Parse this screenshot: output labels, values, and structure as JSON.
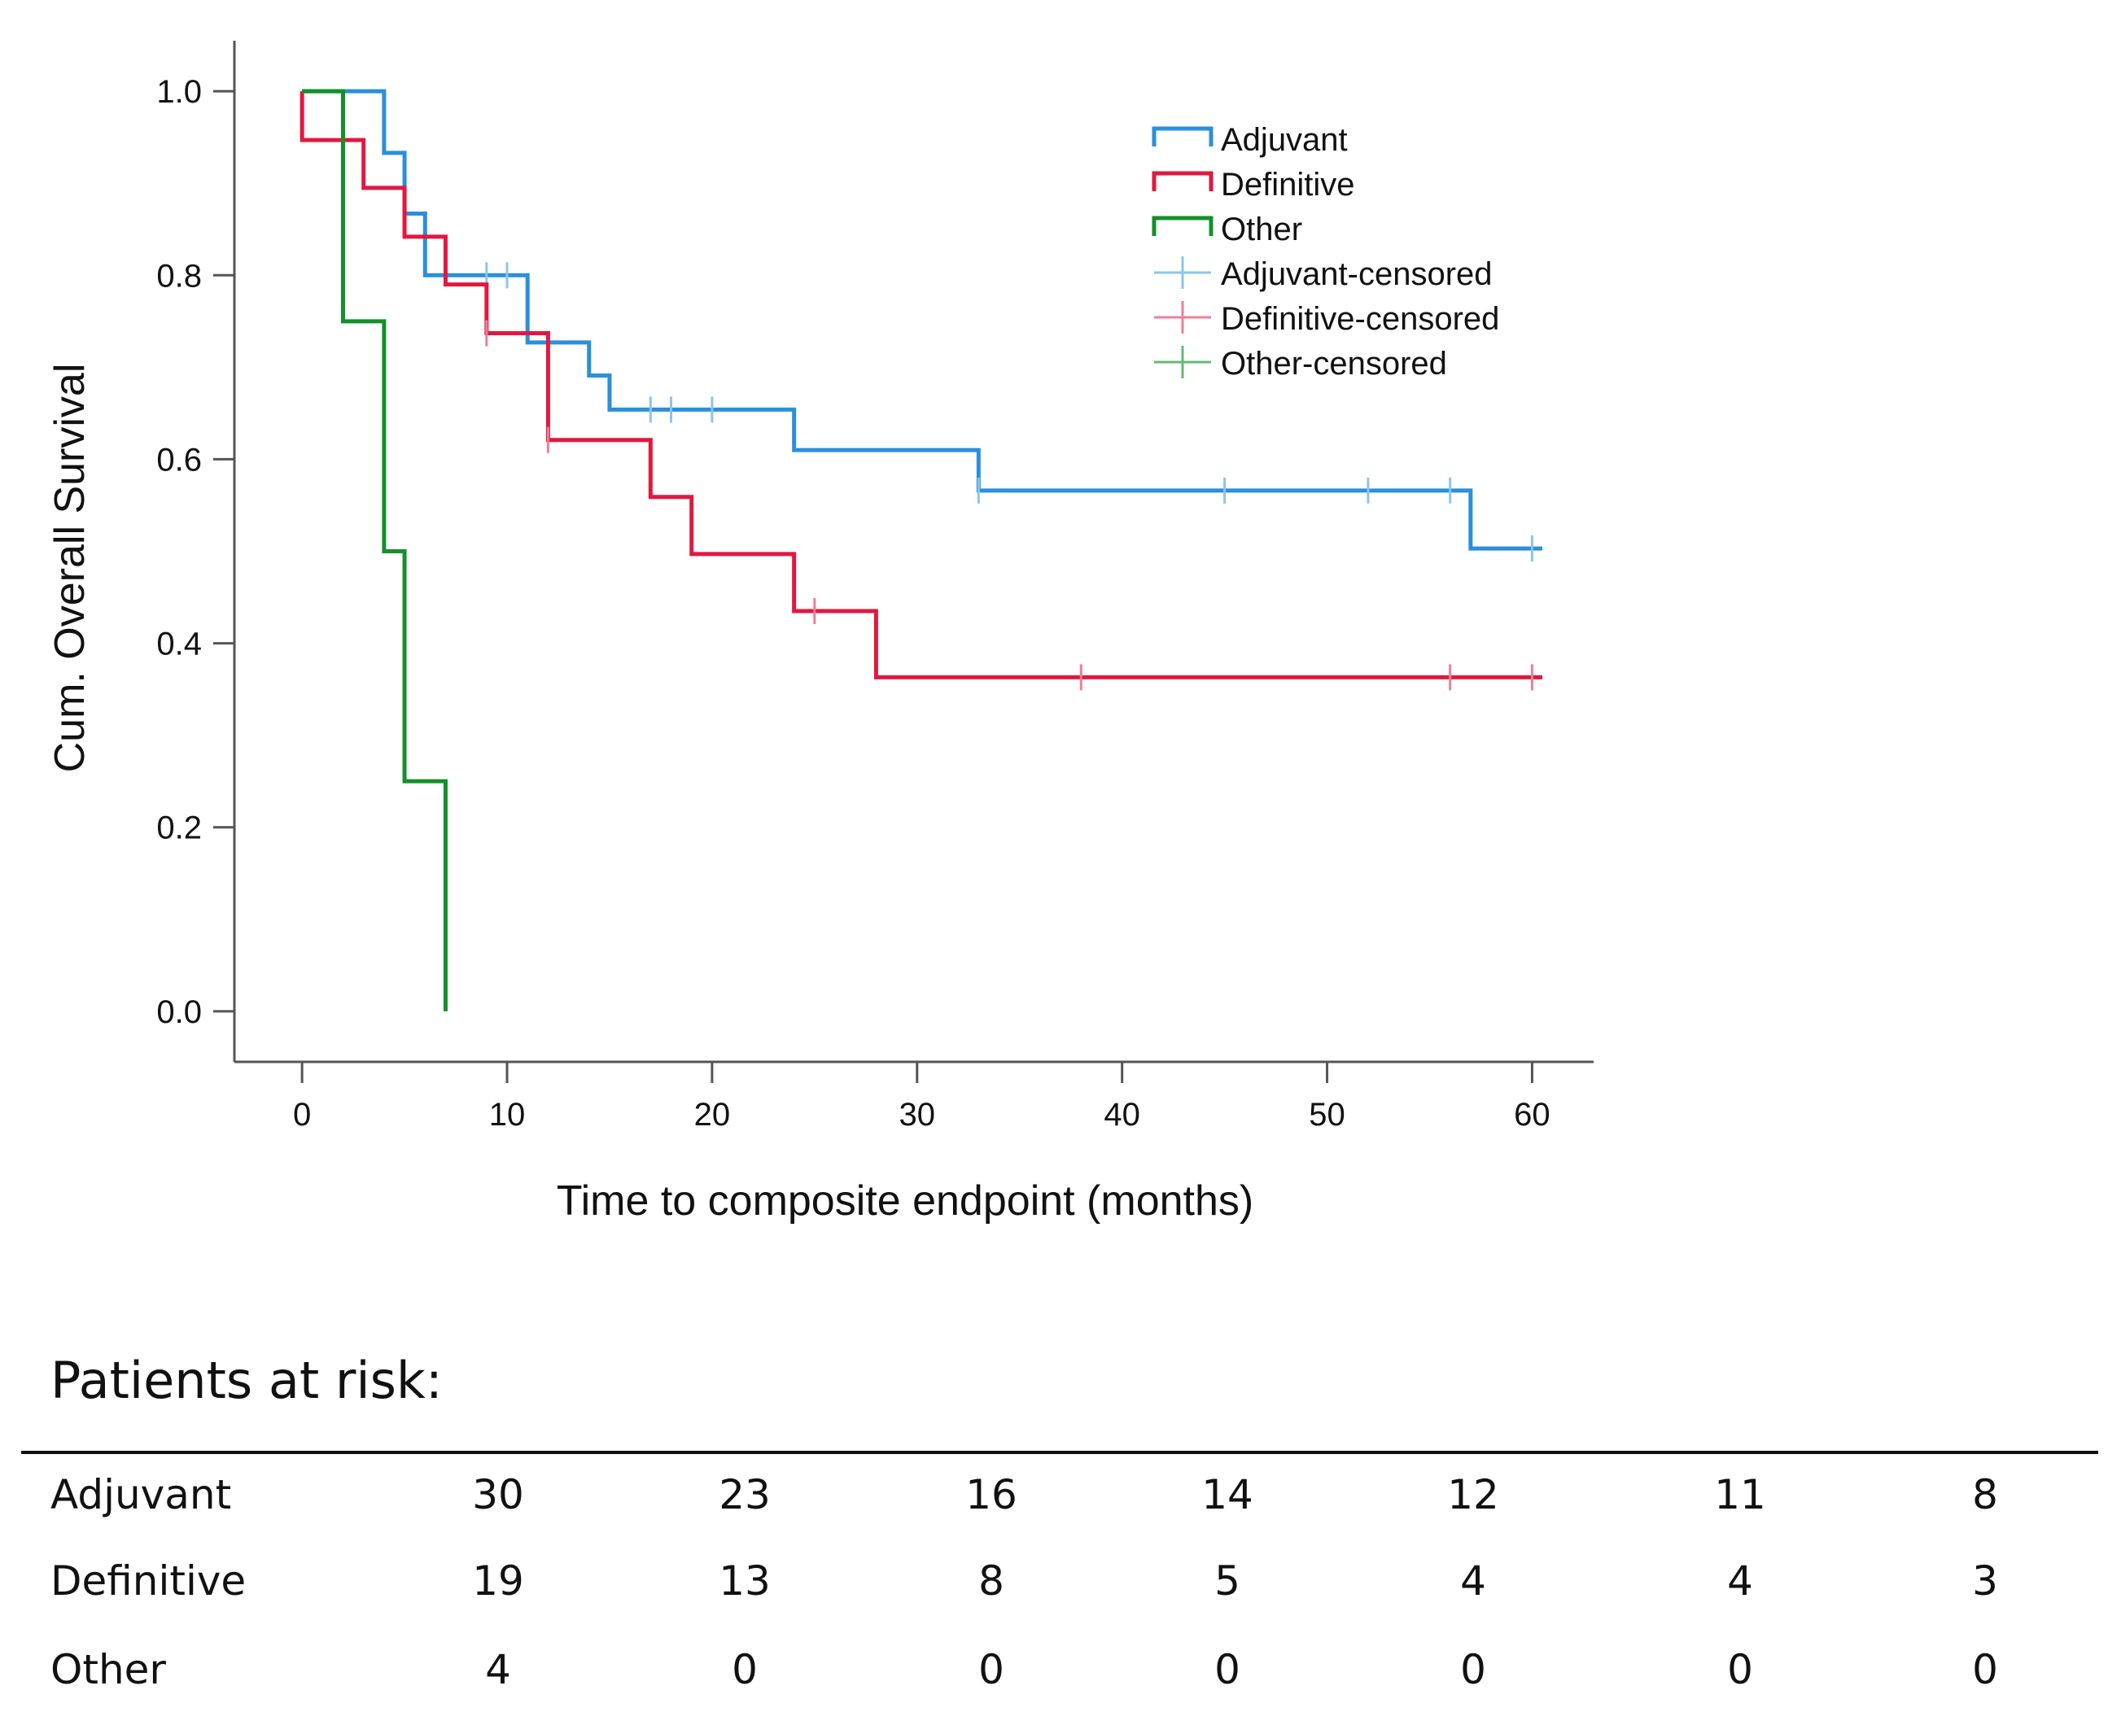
{
  "chart_data": {
    "type": "line",
    "subtype": "kaplan-meier",
    "ylabel": "Cum. Overall Survival",
    "xlabel": "Time to composite endpoint (months)",
    "xlim": [
      -3.3,
      63
    ],
    "ylim": [
      -0.055,
      1.055
    ],
    "xticks": [
      0,
      10,
      20,
      30,
      40,
      50,
      60
    ],
    "yticks": [
      0.0,
      0.2,
      0.4,
      0.6,
      0.8,
      1.0
    ],
    "ytick_labels": [
      "0.0",
      "0.2",
      "0.4",
      "0.6",
      "0.8",
      "1.0"
    ],
    "grid": false,
    "legend_position": "top-right",
    "legend": [
      {
        "label": "Adjuvant",
        "kind": "line",
        "color": "#2a8fdc"
      },
      {
        "label": "Definitive",
        "kind": "line",
        "color": "#e3173f"
      },
      {
        "label": "Other",
        "kind": "line",
        "color": "#14902a"
      },
      {
        "label": "Adjuvant-censored",
        "kind": "censor",
        "color": "#8cc4ee"
      },
      {
        "label": "Definitive-censored",
        "kind": "censor",
        "color": "#ef7f95"
      },
      {
        "label": "Other-censored",
        "kind": "censor",
        "color": "#67b875"
      }
    ],
    "series": [
      {
        "name": "Adjuvant",
        "color": "#2a8fdc",
        "censor_color": "#8cc4ee",
        "steps": [
          [
            0,
            1.0
          ],
          [
            4,
            0.933
          ],
          [
            5,
            0.867
          ],
          [
            6,
            0.8
          ],
          [
            11,
            0.727
          ],
          [
            14,
            0.691
          ],
          [
            15,
            0.654
          ],
          [
            24,
            0.61
          ],
          [
            33,
            0.566
          ],
          [
            57,
            0.503
          ]
        ],
        "end_x": 60.5,
        "censored": [
          [
            9,
            0.8
          ],
          [
            10,
            0.8
          ],
          [
            17,
            0.654
          ],
          [
            18,
            0.654
          ],
          [
            20,
            0.654
          ],
          [
            33,
            0.566
          ],
          [
            45,
            0.566
          ],
          [
            52,
            0.566
          ],
          [
            56,
            0.566
          ],
          [
            60,
            0.503
          ]
        ]
      },
      {
        "name": "Definitive",
        "color": "#e3173f",
        "censor_color": "#ef7f95",
        "steps": [
          [
            0,
            0.947
          ],
          [
            3,
            0.895
          ],
          [
            5,
            0.842
          ],
          [
            7,
            0.79
          ],
          [
            9,
            0.737
          ],
          [
            12,
            0.621
          ],
          [
            17,
            0.559
          ],
          [
            19,
            0.497
          ],
          [
            24,
            0.435
          ],
          [
            28,
            0.363
          ]
        ],
        "end_x": 60.5,
        "censored": [
          [
            9,
            0.737
          ],
          [
            12,
            0.621
          ],
          [
            25,
            0.435
          ],
          [
            38,
            0.363
          ],
          [
            56,
            0.363
          ],
          [
            60,
            0.363
          ]
        ]
      },
      {
        "name": "Other",
        "color": "#14902a",
        "censor_color": "#67b875",
        "steps": [
          [
            0,
            1.0
          ],
          [
            2,
            0.75
          ],
          [
            4,
            0.5
          ],
          [
            5,
            0.25
          ],
          [
            7,
            0.0
          ]
        ],
        "end_x": 7,
        "censored": []
      }
    ]
  },
  "risk_table": {
    "title": "Patients at risk:",
    "rows": [
      {
        "label": "Adjuvant",
        "values": [
          "30",
          "23",
          "16",
          "14",
          "12",
          "11",
          "8"
        ]
      },
      {
        "label": "Definitive",
        "values": [
          "19",
          "13",
          "8",
          "5",
          "4",
          "4",
          "3"
        ]
      },
      {
        "label": "Other",
        "values": [
          "4",
          "0",
          "0",
          "0",
          "0",
          "0",
          "0"
        ]
      }
    ]
  }
}
